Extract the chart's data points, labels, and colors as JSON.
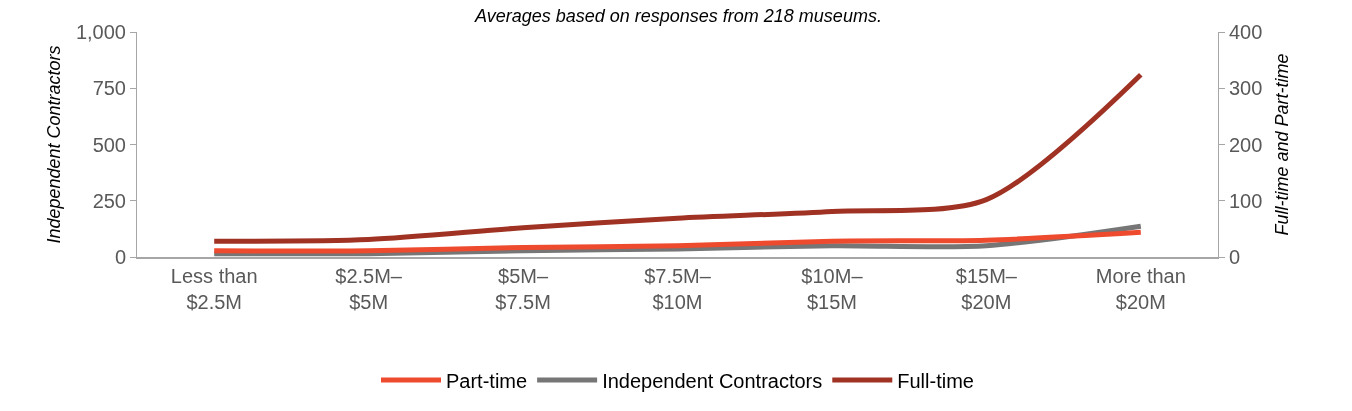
{
  "chart_data": {
    "type": "line",
    "subtitle": "Averages based on responses from 218 museums.",
    "ylabel": "Independent Contractors",
    "y2label": "Full-time and Part-time",
    "categories": [
      "Less than\n$2.5M",
      "$2.5M–\n$5M",
      "$5M–\n$7.5M",
      "$7.5M–\n$10M",
      "$10M–\n$15M",
      "$15M–\n$20M",
      "More than\n$20M"
    ],
    "series": [
      {
        "name": "Part-time",
        "color": "#ee4a2e",
        "axis": "y2",
        "values": [
          11,
          11,
          17,
          20,
          28,
          30,
          44
        ]
      },
      {
        "name": "Independent Contractors",
        "color": "#767676",
        "axis": "y",
        "values": [
          15,
          15,
          28,
          36,
          50,
          50,
          137
        ]
      },
      {
        "name": "Full-time",
        "color": "#a03224",
        "axis": "y2",
        "values": [
          28,
          31,
          52,
          69,
          81,
          102,
          324
        ]
      }
    ],
    "ylim": [
      0,
      1000
    ],
    "yticks": [
      0,
      250,
      500,
      750,
      {
        "value": 1000,
        "label": "1,000"
      }
    ],
    "y2lim": [
      0,
      400
    ],
    "y2ticks": [
      0,
      100,
      200,
      300,
      400
    ],
    "grid": false,
    "legend": "bottom",
    "marker": "none",
    "line_style": "solid"
  }
}
